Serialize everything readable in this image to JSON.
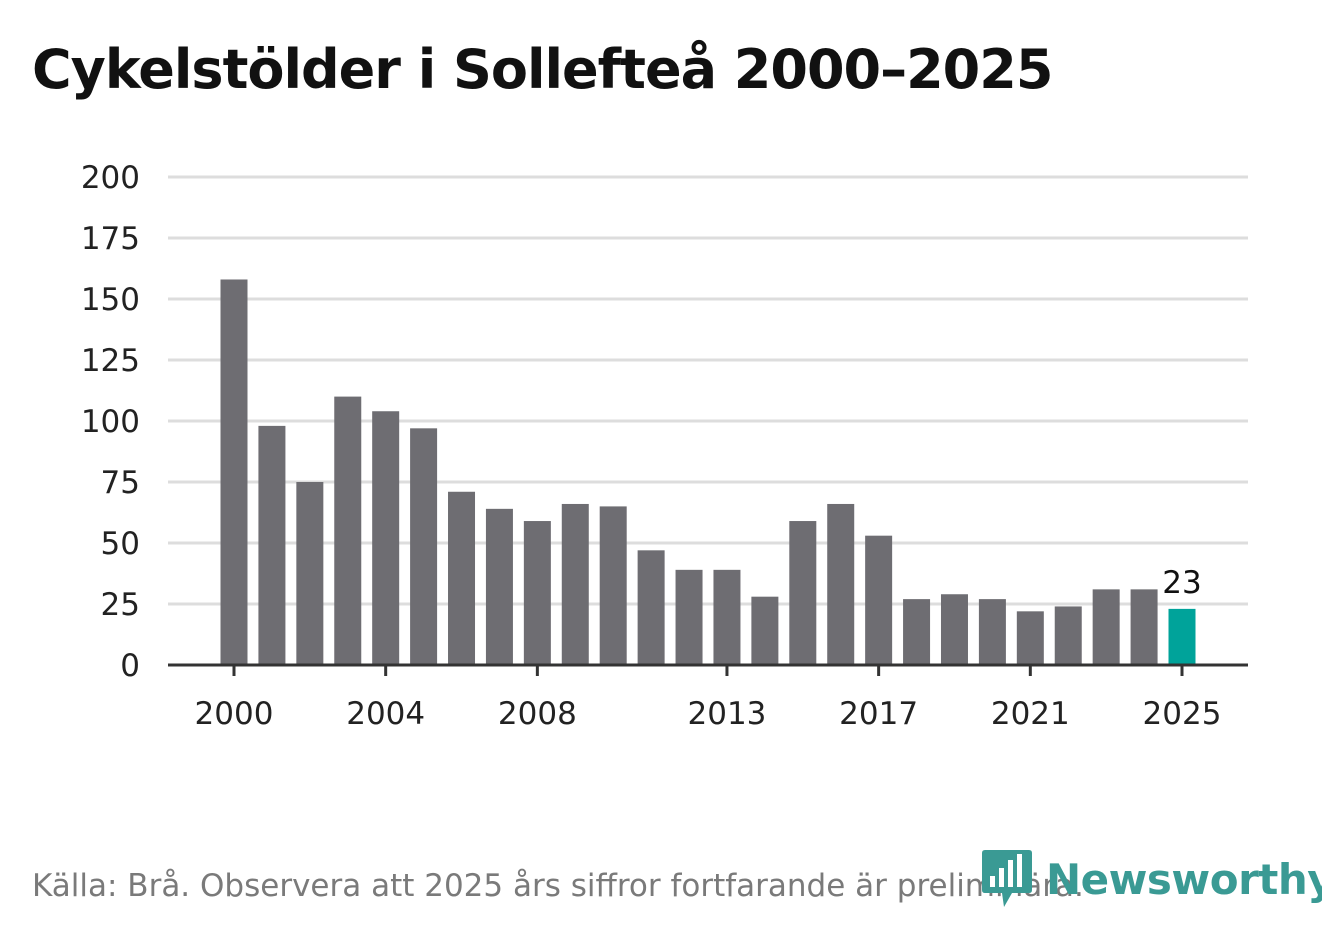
{
  "title": "Cykelstölder i Sollefteå 2000–2025",
  "footer": "Källa: Brå. Observera att 2025 års siffror fortfarande är preliminära.",
  "brand": {
    "name": "Newsworthy",
    "color": "#3a9a94"
  },
  "colors": {
    "bar": "#6e6d72",
    "highlight": "#00a39a",
    "grid": "#dddddd",
    "axis": "#333333",
    "text": "#222222"
  },
  "chart_data": {
    "type": "bar",
    "title": "Cykelstölder i Sollefteå 2000–2025",
    "xlabel": "",
    "ylabel": "",
    "ylim": [
      0,
      200
    ],
    "yticks": [
      0,
      25,
      50,
      75,
      100,
      125,
      150,
      175,
      200
    ],
    "categories": [
      "2000",
      "2001",
      "2002",
      "2003",
      "2004",
      "2005",
      "2006",
      "2007",
      "2008",
      "2009",
      "2010",
      "2011",
      "2012",
      "2013",
      "2014",
      "2015",
      "2016",
      "2017",
      "2018",
      "2019",
      "2020",
      "2021",
      "2022",
      "2023",
      "2024",
      "2025"
    ],
    "xtick_labels": [
      "2000",
      "2004",
      "2008",
      "2013",
      "2017",
      "2021",
      "2025"
    ],
    "values": [
      158,
      98,
      75,
      110,
      104,
      97,
      71,
      64,
      59,
      66,
      65,
      47,
      39,
      39,
      28,
      59,
      66,
      53,
      27,
      29,
      27,
      22,
      24,
      31,
      31,
      23
    ],
    "highlight_category": "2025",
    "annotation": "23",
    "grid": true
  }
}
